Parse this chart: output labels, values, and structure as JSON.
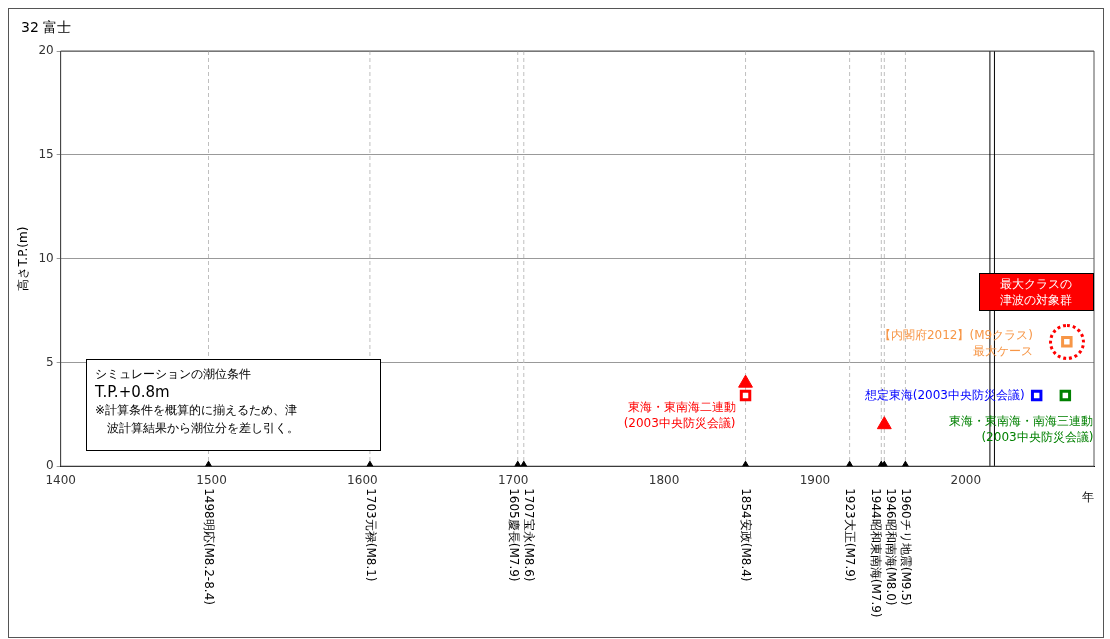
{
  "chart_data": {
    "type": "scatter",
    "title": "32 富士",
    "xlabel": "年",
    "ylabel": "高さT.P.(m)",
    "xlim": [
      1400,
      2085
    ],
    "xticks": [
      1400,
      1500,
      1600,
      1700,
      1800,
      1900,
      2000
    ],
    "ylim": [
      0,
      20
    ],
    "yticks": [
      0,
      5,
      10,
      15,
      20
    ],
    "grid": "y",
    "series": [
      {
        "color": "#000000",
        "marker": "triangle",
        "x": [
          1498,
          1605,
          1703,
          1707,
          1854,
          1923,
          1944,
          1946,
          1960
        ],
        "values": [
          0,
          0,
          0,
          0,
          0,
          0,
          0,
          0,
          0
        ]
      },
      {
        "color": "#ff0000",
        "marker": "triangle",
        "x": [
          1854,
          1946
        ],
        "values": [
          4.0,
          2.0
        ]
      },
      {
        "name": "東海・東南海二連動\n(2003中央防災会議)",
        "color": "#ff0000",
        "marker": "square",
        "x": [
          1854
        ],
        "values": [
          3.4
        ]
      },
      {
        "name": "想定東海(2003中央防災会議)",
        "color": "#0000ff",
        "marker": "square",
        "x": [
          2047
        ],
        "values": [
          3.4
        ]
      },
      {
        "name": "東海・東南海・南海三連動\n(2003中央防災会議)",
        "color": "#008000",
        "marker": "square",
        "x": [
          2066
        ],
        "values": [
          3.4
        ]
      },
      {
        "name": "【内閣府2012】(M9クラス)\n最大ケース",
        "color": "#f79646",
        "marker": "square",
        "x": [
          2067
        ],
        "values": [
          6.0
        ]
      }
    ],
    "ref_lines": [
      {
        "axis": "x",
        "value": 1498,
        "label": "1498明応(M8.2-8.4)",
        "color": "#bfbfbf",
        "line_style": "dashed"
      },
      {
        "axis": "x",
        "value": 1605,
        "label": "1703元禄(M8.1)",
        "color": "#bfbfbf",
        "line_style": "dashed"
      },
      {
        "axis": "x",
        "value": 1703,
        "label": "1605慶長(M7.9)",
        "color": "#bfbfbf",
        "line_style": "dashed"
      },
      {
        "axis": "x",
        "value": 1707,
        "label": "1707宝永(M8.6)",
        "color": "#bfbfbf",
        "line_style": "dashed"
      },
      {
        "axis": "x",
        "value": 1854,
        "label": "1854安政(M8.4)",
        "color": "#bfbfbf",
        "line_style": "dashed"
      },
      {
        "axis": "x",
        "value": 1923,
        "label": "1923大正(M7.9)",
        "color": "#bfbfbf",
        "line_style": "dashed"
      },
      {
        "axis": "x",
        "value": 1944,
        "label": "1944昭和東南海(M7.9)",
        "color": "#bfbfbf",
        "line_style": "dashed"
      },
      {
        "axis": "x",
        "value": 1946,
        "label": "1946昭和南海(M8.0)",
        "color": "#bfbfbf",
        "line_style": "dashed"
      },
      {
        "axis": "x",
        "value": 1960,
        "label": "1960チリ地震(M9.5)",
        "color": "#bfbfbf",
        "line_style": "dashed"
      },
      {
        "axis": "x",
        "value": 2016,
        "color": "#000000",
        "line_style": "solid"
      },
      {
        "axis": "x",
        "value": 2019,
        "color": "#000000",
        "line_style": "solid"
      }
    ],
    "annotations": [
      "シミュレーションの潮位条件",
      "T.P.+0.8m",
      "※計算条件を概算的に揃えるため、津波計算結果から潮位分を差し引く。",
      "最大クラスの津波の対象群"
    ]
  }
}
